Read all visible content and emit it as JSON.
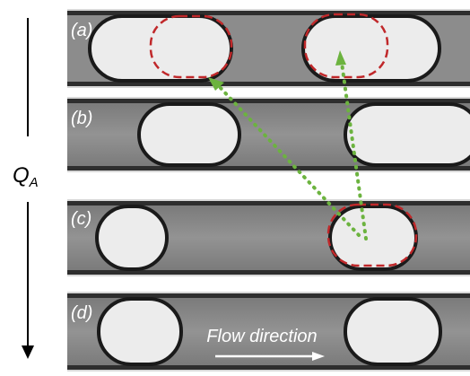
{
  "panels": [
    {
      "label": "(a)"
    },
    {
      "label": "(b)"
    },
    {
      "label": "(c)"
    },
    {
      "label": "(d)"
    }
  ],
  "flow_axis": {
    "label": "Q",
    "subscript": "A"
  },
  "annotation": "Flow direction"
}
